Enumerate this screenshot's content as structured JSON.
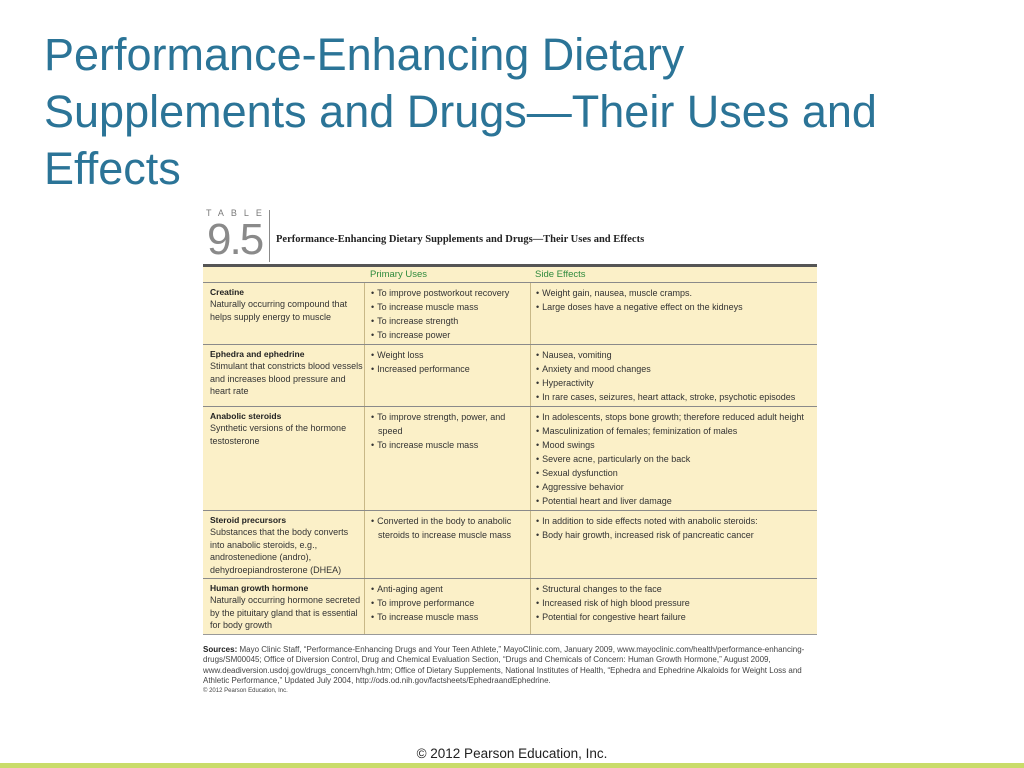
{
  "slide": {
    "title": "Performance-Enhancing Dietary Supplements and Drugs—Their Uses and Effects",
    "footer": "© 2012 Pearson Education, Inc."
  },
  "table": {
    "label_word": "TABLE",
    "number": "9.5",
    "title": "Performance-Enhancing Dietary Supplements and Drugs—Their Uses and Effects",
    "colors": {
      "heading": "#2f8a3d",
      "row_bg": "#fbf0c8"
    },
    "columns": [
      "",
      "Primary Uses",
      "Side Effects"
    ],
    "rows": [
      {
        "name": "Creatine",
        "desc": "Naturally occurring compound that helps supply energy to muscle",
        "uses": [
          "To improve postworkout recovery",
          "To increase muscle mass",
          "To increase strength",
          "To increase power"
        ],
        "effects": [
          "Weight gain, nausea, muscle cramps.",
          "Large doses have a negative effect on the kidneys"
        ]
      },
      {
        "name": "Ephedra and ephedrine",
        "desc": "Stimulant that constricts blood vessels and increases blood pressure and heart rate",
        "uses": [
          "Weight loss",
          "Increased performance"
        ],
        "effects": [
          "Nausea, vomiting",
          "Anxiety and mood changes",
          "Hyperactivity",
          "In rare cases, seizures, heart attack, stroke, psychotic episodes"
        ]
      },
      {
        "name": "Anabolic steroids",
        "desc": "Synthetic versions of the hormone testosterone",
        "uses": [
          "To improve strength, power, and speed",
          "To increase muscle mass"
        ],
        "effects": [
          "In adolescents, stops bone growth; therefore reduced adult height",
          "Masculinization of females; feminization of males",
          "Mood swings",
          "Severe acne, particularly on the back",
          "Sexual dysfunction",
          "Aggressive behavior",
          "Potential heart and liver damage"
        ]
      },
      {
        "name": "Steroid precursors",
        "desc": "Substances that the body converts into anabolic steroids, e.g., androstenedione (andro), dehydroepiandrosterone (DHEA)",
        "uses": [
          "Converted in the body to anabolic steroids to increase muscle mass"
        ],
        "effects": [
          "In addition to side effects noted with anabolic steroids:",
          "Body hair growth, increased risk of pancreatic cancer"
        ]
      },
      {
        "name": "Human growth hormone",
        "desc": "Naturally occurring hormone secreted by the pituitary gland that is essential for body growth",
        "uses": [
          "Anti-aging agent",
          "To improve performance",
          "To increase muscle mass"
        ],
        "effects": [
          "Structural changes to the face",
          "Increased risk of high blood pressure",
          "Potential for congestive heart failure"
        ]
      }
    ],
    "sources_label": "Sources:",
    "sources_text": "Mayo Clinic Staff, “Performance-Enhancing Drugs and Your Teen Athlete,” MayoClinic.com, January 2009, www.mayoclinic.com/health/performance-enhancing-drugs/SM00045; Office of Diversion Control, Drug and Chemical Evaluation Section, “Drugs and Chemicals of Concern: Human Growth Hormone,” August 2009, www.deadiversion.usdoj.gov/drugs_concern/hgh.htm; Office of Dietary Supplements, National Institutes of Health, “Ephedra and Ephedrine Alkaloids for Weight Loss and Athletic Performance,” Updated July 2004, http://ods.od.nih.gov/factsheets/EphedraandEphedrine.",
    "copyright": "© 2012 Pearson Education, Inc."
  }
}
